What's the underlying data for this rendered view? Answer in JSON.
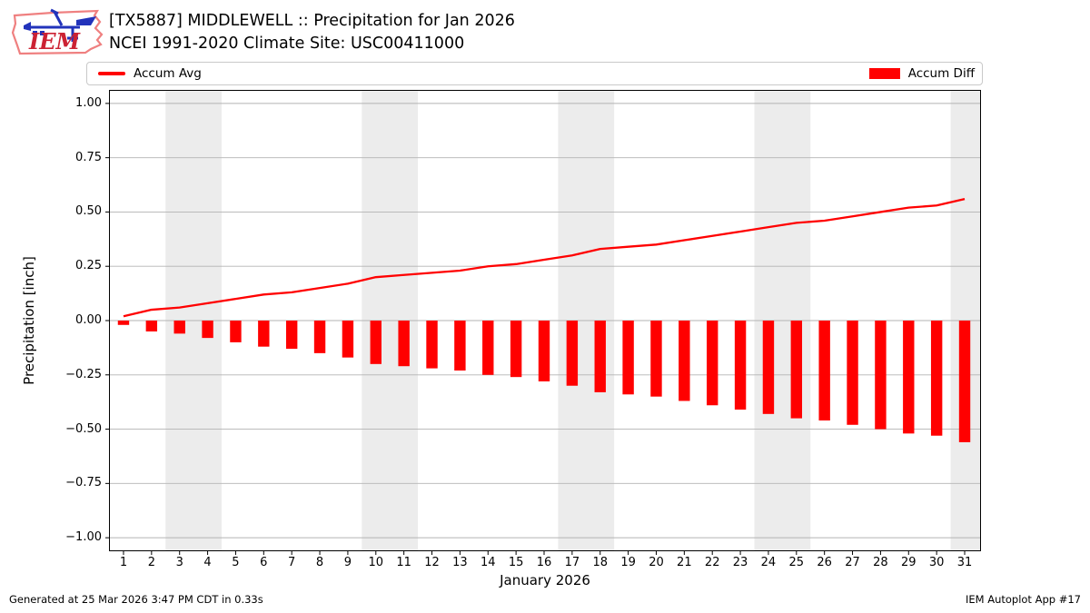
{
  "header": {
    "title_line1": "[TX5887] MIDDLEWELL :: Precipitation for Jan 2026",
    "title_line2": "NCEI 1991-2020 Climate Site: USC00411000",
    "logo_text": "IEM"
  },
  "legend": {
    "line_label": "Accum Avg",
    "bar_label": "Accum Diff"
  },
  "footer": {
    "generated": "Generated at 25 Mar 2026 3:47 PM CDT in 0.33s",
    "app": "IEM Autoplot App #17"
  },
  "colors": {
    "accent_red": "#ff0000",
    "weekend_band": "#ececec",
    "gridline": "#b3b3b3",
    "frame": "#000000",
    "legend_border": "#c9c9c9",
    "logo_outline": "#ef8080",
    "logo_blue": "#2233bb",
    "logo_red": "#cc2233"
  },
  "chart_data": {
    "type": "line+bar",
    "title": "[TX5887] MIDDLEWELL :: Precipitation for Jan 2026",
    "subtitle": "NCEI 1991-2020 Climate Site: USC00411000",
    "xlabel": "January 2026",
    "ylabel": "Precipitation [inch]",
    "xlim": [
      0.515,
      31.55
    ],
    "ylim": [
      -1.058,
      1.058
    ],
    "yticks": [
      1.0,
      0.75,
      0.5,
      0.25,
      0.0,
      -0.25,
      -0.5,
      -0.75,
      -1.0
    ],
    "grid": true,
    "days": [
      1,
      2,
      3,
      4,
      5,
      6,
      7,
      8,
      9,
      10,
      11,
      12,
      13,
      14,
      15,
      16,
      17,
      18,
      19,
      20,
      21,
      22,
      23,
      24,
      25,
      26,
      27,
      28,
      29,
      30,
      31
    ],
    "series": [
      {
        "name": "Accum Avg",
        "type": "line",
        "color": "#ff0000",
        "values": [
          0.02,
          0.05,
          0.06,
          0.08,
          0.1,
          0.12,
          0.13,
          0.15,
          0.17,
          0.2,
          0.21,
          0.22,
          0.23,
          0.25,
          0.26,
          0.28,
          0.3,
          0.33,
          0.34,
          0.35,
          0.37,
          0.39,
          0.41,
          0.43,
          0.45,
          0.46,
          0.48,
          0.5,
          0.52,
          0.53,
          0.56
        ]
      },
      {
        "name": "Accum Diff",
        "type": "bar",
        "color": "#ff0000",
        "values": [
          -0.02,
          -0.05,
          -0.06,
          -0.08,
          -0.1,
          -0.12,
          -0.13,
          -0.15,
          -0.17,
          -0.2,
          -0.21,
          -0.22,
          -0.23,
          -0.25,
          -0.26,
          -0.28,
          -0.3,
          -0.33,
          -0.34,
          -0.35,
          -0.37,
          -0.39,
          -0.41,
          -0.43,
          -0.45,
          -0.46,
          -0.48,
          -0.5,
          -0.52,
          -0.53,
          -0.56
        ]
      }
    ],
    "weekend_bands": [
      [
        2.5,
        4.5
      ],
      [
        9.5,
        11.5
      ],
      [
        16.5,
        18.5
      ],
      [
        23.5,
        25.5
      ],
      [
        30.5,
        31.55
      ]
    ],
    "legend_position": "top"
  }
}
